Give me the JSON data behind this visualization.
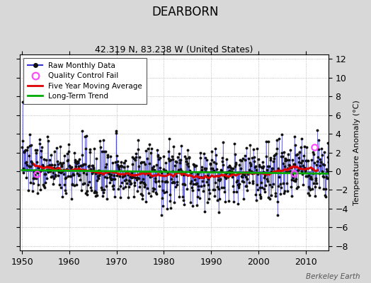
{
  "title": "DEARBORN",
  "subtitle": "42.319 N, 83.238 W (United States)",
  "ylabel": "Temperature Anomaly (°C)",
  "watermark": "Berkeley Earth",
  "xlim": [
    1949.5,
    2014.8
  ],
  "ylim": [
    -8.5,
    12.5
  ],
  "yticks": [
    -8,
    -6,
    -4,
    -2,
    0,
    2,
    4,
    6,
    8,
    10,
    12
  ],
  "xticks": [
    1950,
    1960,
    1970,
    1980,
    1990,
    2000,
    2010
  ],
  "seed": 137,
  "line_color": "#3333cc",
  "dot_color": "#111111",
  "ma_color": "#dd0000",
  "trend_color": "#00aa00",
  "qc_color": "#ff44ff",
  "background_color": "#d8d8d8",
  "plot_bg_color": "#ffffff"
}
